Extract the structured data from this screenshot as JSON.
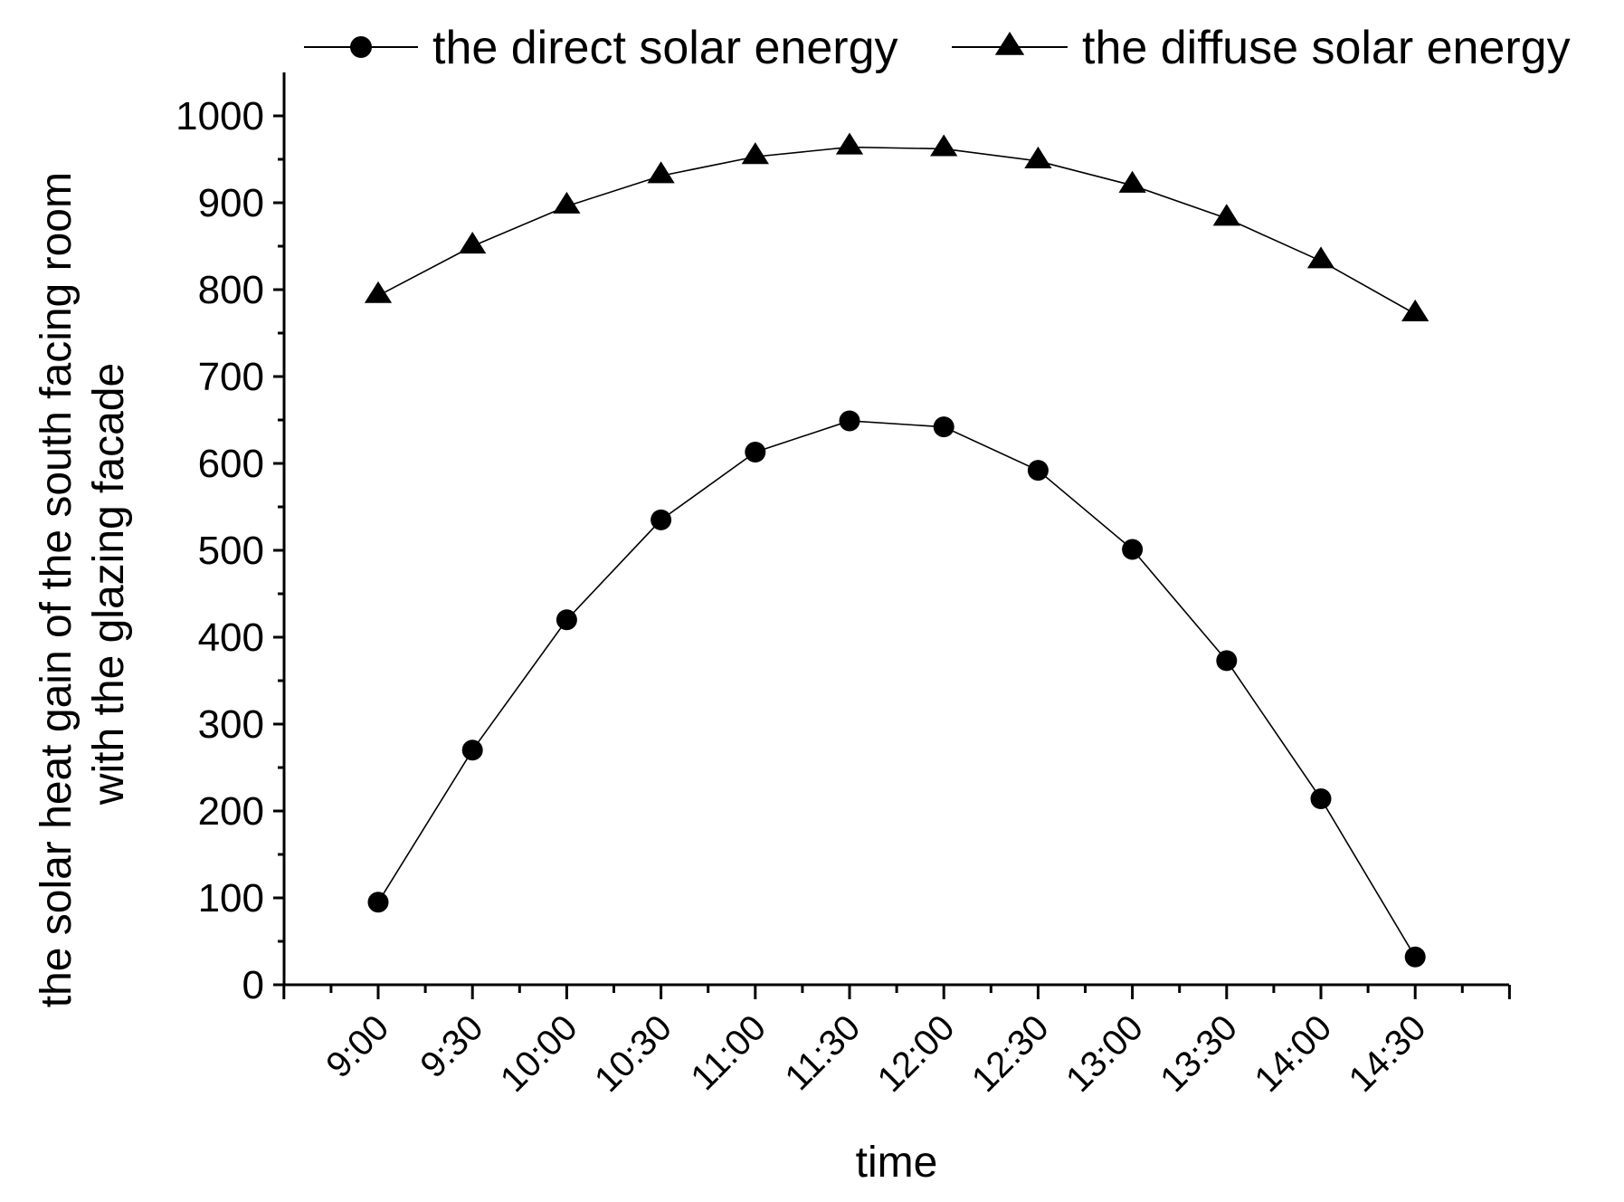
{
  "chart_data": {
    "type": "line",
    "title": "",
    "xlabel": "time",
    "ylabel_lines": [
      "the solar heat gain of  the south facing room",
      "with the glazing facade"
    ],
    "ylim": [
      0,
      1050
    ],
    "y_ticks": [
      0,
      100,
      200,
      300,
      400,
      500,
      600,
      700,
      800,
      900,
      1000
    ],
    "categories": [
      "9:00",
      "9:30",
      "10:00",
      "10:30",
      "11:00",
      "11:30",
      "12:00",
      "12:30",
      "13:00",
      "13:30",
      "14:00",
      "14:30"
    ],
    "legend_position": "top",
    "series": [
      {
        "name": "the direct solar energy",
        "marker": "circle",
        "color": "#000000",
        "values": [
          95,
          270,
          420,
          535,
          613,
          649,
          642,
          592,
          501,
          373,
          214,
          32
        ]
      },
      {
        "name": "the diffuse solar energy",
        "marker": "triangle",
        "color": "#000000",
        "values": [
          793,
          850,
          896,
          931,
          953,
          964,
          962,
          948,
          920,
          882,
          833,
          772
        ]
      }
    ]
  }
}
